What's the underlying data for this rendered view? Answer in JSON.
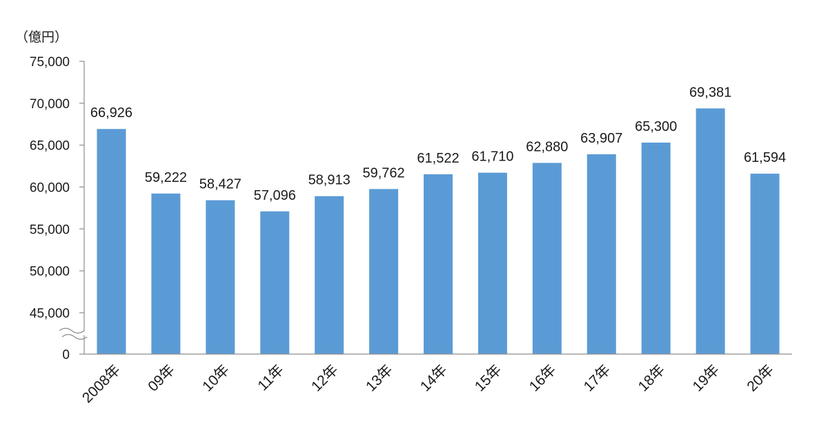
{
  "chart_data": {
    "type": "bar",
    "unit_label": "（億円）",
    "categories": [
      "2008年",
      "09年",
      "10年",
      "11年",
      "12年",
      "13年",
      "14年",
      "15年",
      "16年",
      "17年",
      "18年",
      "19年",
      "20年"
    ],
    "values": [
      66926,
      59222,
      58427,
      57096,
      58913,
      59762,
      61522,
      61710,
      62880,
      63907,
      65300,
      69381,
      61594
    ],
    "value_labels": [
      "66,926",
      "59,222",
      "58,427",
      "57,096",
      "58,913",
      "59,762",
      "61,522",
      "61,710",
      "62,880",
      "63,907",
      "65,300",
      "69,381",
      "61,594"
    ],
    "y_ticks": [
      0,
      45000,
      50000,
      55000,
      60000,
      65000,
      70000,
      75000
    ],
    "y_tick_labels": [
      "0",
      "45,000",
      "50,000",
      "55,000",
      "60,000",
      "65,000",
      "70,000",
      "75,000"
    ],
    "ylim": [
      0,
      75000
    ],
    "axis_break": {
      "from": 0,
      "to": 45000
    },
    "bar_color": "#5b9bd5",
    "grid": false,
    "legend": "none"
  }
}
